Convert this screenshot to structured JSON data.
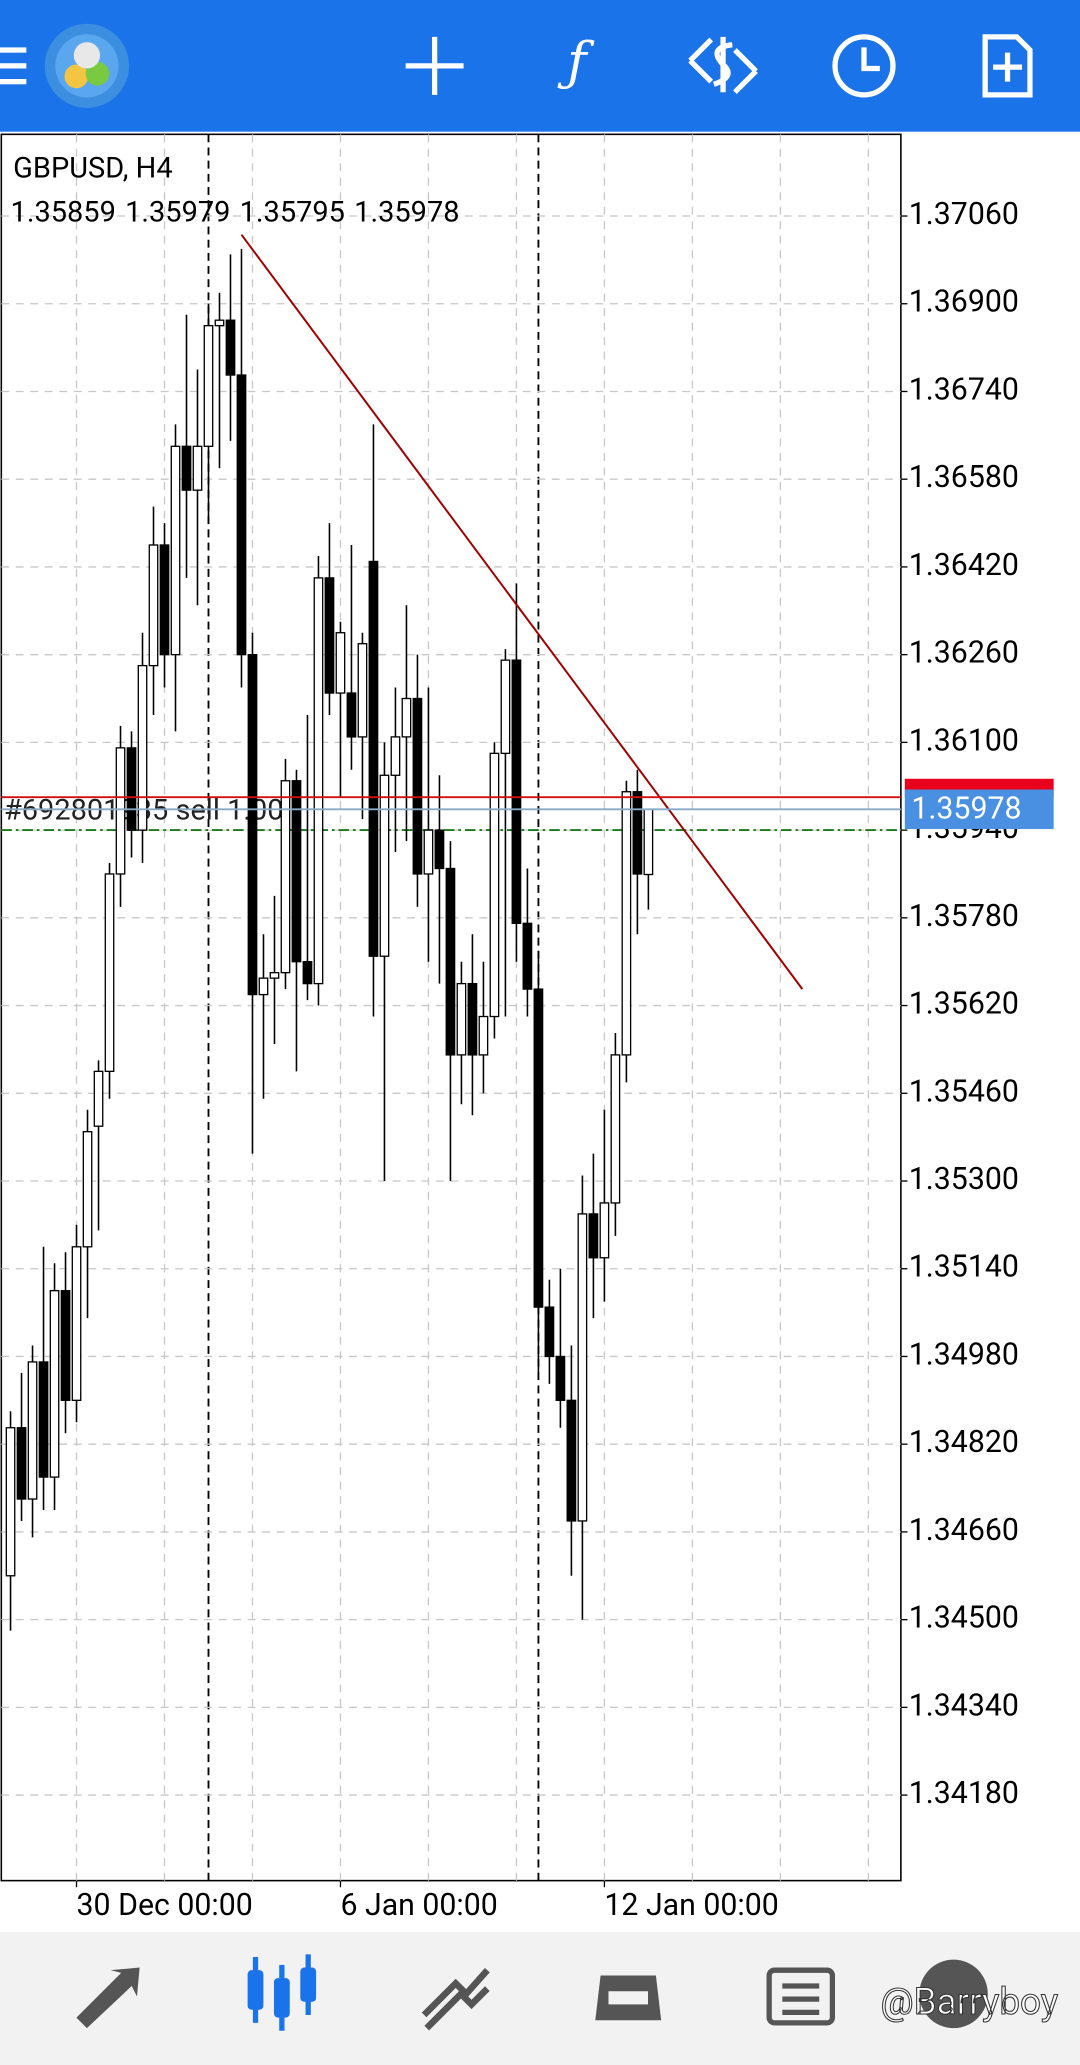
{
  "chart_data": {
    "type": "candlestick",
    "title": "GBPUSD, H4",
    "ohlc": [
      1.35859,
      1.35979,
      1.35795,
      1.35978
    ],
    "categories": [
      null,
      null,
      null,
      null,
      null,
      null,
      "30 Dec 00:00",
      null,
      null,
      null,
      null,
      null,
      null,
      null,
      null,
      null,
      null,
      null,
      null,
      null,
      null,
      null,
      null,
      null,
      null,
      null,
      null,
      null,
      null,
      null,
      "6 Jan 00:00",
      null,
      null,
      null,
      null,
      null,
      null,
      null,
      null,
      null,
      null,
      null,
      null,
      null,
      null,
      null,
      null,
      null,
      null,
      null,
      null,
      null,
      null,
      null,
      "12 Jan 00:00",
      null,
      null,
      null,
      null
    ],
    "open": [
      1.3458,
      1.3485,
      1.3472,
      1.3497,
      1.3476,
      1.351,
      1.349,
      1.3518,
      1.354,
      1.355,
      1.3586,
      1.3609,
      1.3594,
      1.3624,
      1.3646,
      1.3626,
      1.3664,
      1.3656,
      1.3664,
      1.3686,
      1.3687,
      1.3677,
      1.3626,
      1.3564,
      1.3567,
      1.3568,
      1.3603,
      1.357,
      1.3566,
      1.364,
      1.3619,
      1.3619,
      1.3611,
      1.3643,
      1.3571,
      1.3604,
      1.3611,
      1.3618,
      1.3586,
      1.3594,
      1.3587,
      1.3553,
      1.3566,
      1.3553,
      1.356,
      1.3608,
      1.3625,
      1.3577,
      1.3565,
      1.3507,
      1.3498,
      1.349,
      1.3468,
      1.3524,
      1.3516,
      1.3526,
      1.3553,
      1.3601,
      1.35859
    ],
    "high": [
      1.3488,
      1.3495,
      1.35,
      1.3518,
      1.3515,
      1.3517,
      1.3522,
      1.3543,
      1.3552,
      1.3588,
      1.3613,
      1.3612,
      1.363,
      1.3653,
      1.365,
      1.3668,
      1.3688,
      1.3678,
      1.369,
      1.3692,
      1.3699,
      1.37,
      1.363,
      1.3575,
      1.3582,
      1.3607,
      1.3605,
      1.3615,
      1.3644,
      1.365,
      1.3632,
      1.3646,
      1.363,
      1.3668,
      1.361,
      1.362,
      1.3635,
      1.3626,
      1.362,
      1.3604,
      1.3592,
      1.357,
      1.3575,
      1.357,
      1.361,
      1.3627,
      1.3639,
      1.3587,
      1.3572,
      1.3512,
      1.3514,
      1.35,
      1.3531,
      1.3535,
      1.3543,
      1.3557,
      1.3603,
      1.3605,
      1.35979
    ],
    "low": [
      1.3448,
      1.3468,
      1.3465,
      1.347,
      1.347,
      1.3484,
      1.3486,
      1.3505,
      1.3521,
      1.3545,
      1.358,
      1.3589,
      1.3588,
      1.3615,
      1.362,
      1.3612,
      1.364,
      1.3635,
      1.365,
      1.366,
      1.3665,
      1.362,
      1.3535,
      1.3545,
      1.3555,
      1.3565,
      1.355,
      1.3563,
      1.3562,
      1.3615,
      1.36,
      1.3605,
      1.3596,
      1.356,
      1.353,
      1.359,
      1.3592,
      1.358,
      1.357,
      1.3566,
      1.353,
      1.3544,
      1.3542,
      1.3546,
      1.3556,
      1.356,
      1.357,
      1.356,
      1.3495,
      1.3493,
      1.3485,
      1.3458,
      1.345,
      1.3505,
      1.3508,
      1.352,
      1.3548,
      1.3575,
      1.35795
    ],
    "close": [
      1.3485,
      1.3472,
      1.3497,
      1.3476,
      1.351,
      1.349,
      1.3518,
      1.3539,
      1.355,
      1.3586,
      1.3609,
      1.3594,
      1.3624,
      1.3646,
      1.3626,
      1.3664,
      1.3656,
      1.3664,
      1.3686,
      1.3687,
      1.3677,
      1.3626,
      1.3564,
      1.3567,
      1.3568,
      1.3603,
      1.357,
      1.3566,
      1.364,
      1.3619,
      1.363,
      1.3611,
      1.3628,
      1.3571,
      1.3604,
      1.3611,
      1.3618,
      1.3586,
      1.3594,
      1.3587,
      1.3553,
      1.3566,
      1.3553,
      1.356,
      1.3608,
      1.3625,
      1.3577,
      1.3565,
      1.3507,
      1.3498,
      1.349,
      1.3468,
      1.3524,
      1.3516,
      1.3526,
      1.3553,
      1.3601,
      1.3586,
      1.35978
    ],
    "up_color": "#ffffff",
    "down_color": "#000000",
    "ylim": [
      1.34024,
      1.37209
    ],
    "yticks": [
      {
        "value": 1.3706,
        "label": "1.37060"
      },
      {
        "value": 1.369,
        "label": "1.36900"
      },
      {
        "value": 1.3674,
        "label": "1.36740"
      },
      {
        "value": 1.3658,
        "label": "1.36580"
      },
      {
        "value": 1.3642,
        "label": "1.36420"
      },
      {
        "value": 1.3626,
        "label": "1.36260"
      },
      {
        "value": 1.361,
        "label": "1.36100"
      },
      {
        "value": 1.3594,
        "label": "1.35940"
      },
      {
        "value": 1.3578,
        "label": "1.35780"
      },
      {
        "value": 1.3562,
        "label": "1.35620"
      },
      {
        "value": 1.3546,
        "label": "1.35460"
      },
      {
        "value": 1.353,
        "label": "1.35300"
      },
      {
        "value": 1.3514,
        "label": "1.35140"
      },
      {
        "value": 1.3498,
        "label": "1.34980"
      },
      {
        "value": 1.3482,
        "label": "1.34820"
      },
      {
        "value": 1.3466,
        "label": "1.34660"
      },
      {
        "value": 1.345,
        "label": "1.34500"
      },
      {
        "value": 1.3434,
        "label": "1.34340"
      },
      {
        "value": 1.3418,
        "label": "1.34180"
      }
    ],
    "grid": true,
    "bid": 1.35978,
    "ask": 1.36,
    "order": {
      "label": "#692801935 sell 1.00",
      "price": 1.3594
    },
    "trendline": {
      "x": [
        21,
        72
      ],
      "y": [
        1.37026,
        1.3565
      ]
    }
  },
  "watermark": "@Barryboy"
}
